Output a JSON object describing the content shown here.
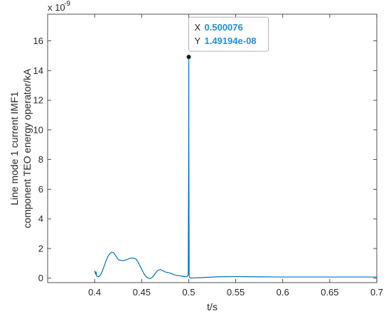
{
  "chart_data": {
    "type": "line",
    "xlabel": "t/s",
    "ylabel_lines": [
      "Line mode 1 current IMF1",
      "component TEO energy operator/kA"
    ],
    "y_exponent_label": "x 10",
    "y_exponent": "-9",
    "xlim": [
      0.35,
      0.7
    ],
    "ylim": [
      -0.3,
      17.8
    ],
    "x_ticks": [
      0.4,
      0.45,
      0.5,
      0.55,
      0.6,
      0.65,
      0.7
    ],
    "x_tick_labels": [
      "0.4",
      "0.45",
      "0.5",
      "0.55",
      "0.6",
      "0.65",
      "0.7"
    ],
    "y_ticks": [
      0,
      2,
      4,
      6,
      8,
      10,
      12,
      14,
      16
    ],
    "y_tick_labels": [
      "0",
      "2",
      "4",
      "6",
      "8",
      "10",
      "12",
      "14",
      "16"
    ],
    "grid": false,
    "line_color": "#0072bd",
    "series": [
      {
        "x": [
          0.4,
          0.401,
          0.4015,
          0.402,
          0.404,
          0.406,
          0.408,
          0.41,
          0.412,
          0.414,
          0.416,
          0.418,
          0.42,
          0.422,
          0.424,
          0.426,
          0.428,
          0.43,
          0.432,
          0.434,
          0.436,
          0.438,
          0.44,
          0.442,
          0.444,
          0.446,
          0.448,
          0.45,
          0.452,
          0.454,
          0.456,
          0.458,
          0.46,
          0.462,
          0.464,
          0.466,
          0.468,
          0.47,
          0.472,
          0.474,
          0.476,
          0.478,
          0.48,
          0.482,
          0.484,
          0.486,
          0.488,
          0.49,
          0.492,
          0.494,
          0.496,
          0.498,
          0.4995,
          0.5,
          0.50008,
          0.5002,
          0.5005,
          0.501,
          0.502,
          0.505,
          0.51,
          0.52,
          0.53,
          0.54,
          0.55,
          0.56,
          0.58,
          0.6,
          0.62,
          0.64,
          0.66,
          0.68,
          0.7
        ],
        "y": [
          0.5,
          0.25,
          0.45,
          0.15,
          0.1,
          0.2,
          0.45,
          0.8,
          1.15,
          1.45,
          1.65,
          1.75,
          1.72,
          1.55,
          1.35,
          1.22,
          1.2,
          1.18,
          1.2,
          1.25,
          1.3,
          1.35,
          1.36,
          1.35,
          1.28,
          1.1,
          0.85,
          0.6,
          0.35,
          0.15,
          0.03,
          -0.02,
          0.0,
          0.1,
          0.28,
          0.45,
          0.55,
          0.58,
          0.52,
          0.45,
          0.4,
          0.38,
          0.35,
          0.3,
          0.24,
          0.2,
          0.18,
          0.17,
          0.15,
          0.12,
          0.1,
          0.1,
          0.2,
          9.0,
          14.92,
          9.0,
          0.2,
          0.05,
          0.0,
          0.02,
          0.03,
          0.06,
          0.09,
          0.1,
          0.11,
          0.1,
          0.09,
          0.08,
          0.08,
          0.08,
          0.08,
          0.08,
          0.08
        ]
      }
    ],
    "datatip": {
      "x_key": "X",
      "x_value": "0.500076",
      "y_key": "Y",
      "y_value": "1.49194e-08",
      "x": 0.500076,
      "y": 14.9194
    }
  }
}
